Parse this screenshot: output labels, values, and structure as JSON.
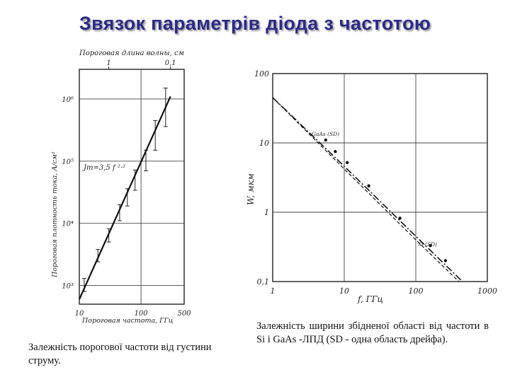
{
  "slide": {
    "title": "Звязок параметрів діода з частотою",
    "caption_left": "Залежність порогової частоти від густини струму.",
    "caption_right": "Залежність ширини збідненої області від частоти в Si і GaAs -ЛПД (SD - одна область дрейфа)."
  },
  "chart_data": [
    {
      "type": "line",
      "xlabel": "Пороговая частота, ГГц",
      "ylabel": "Пороговая плотность тока, А/см²",
      "top_axis_label": "Пороговая длина волны, см",
      "top_ticks": [
        "1",
        "0,1"
      ],
      "x_scale": "log",
      "y_scale": "log",
      "xlim": [
        10,
        500
      ],
      "ylim": [
        500,
        3000000
      ],
      "x_ticks": [
        "10",
        "100",
        "500"
      ],
      "y_ticks": [
        "10³",
        "10⁴",
        "10⁵",
        "10⁶"
      ],
      "annotation": "Jт=3,5 f ²·²",
      "series": [
        {
          "kind": "fit_line",
          "x": [
            10,
            300
          ],
          "y": [
            600,
            1100000
          ]
        },
        {
          "kind": "measured_points",
          "x": [
            12,
            20,
            30,
            45,
            60,
            80,
            120,
            170,
            250
          ],
          "y": [
            1000,
            3000,
            6500,
            15000,
            26000,
            50000,
            100000,
            250000,
            600000
          ],
          "err_low": [
            800,
            2400,
            5000,
            11000,
            19000,
            34000,
            70000,
            150000,
            360000
          ],
          "err_high": [
            1300,
            3800,
            8200,
            20000,
            36000,
            72000,
            150000,
            450000,
            1500000
          ]
        }
      ]
    },
    {
      "type": "line",
      "xlabel": "f, ГГц",
      "ylabel": "W, мкм",
      "x_scale": "log",
      "y_scale": "log",
      "xlim": [
        1,
        1000
      ],
      "ylim": [
        0.1,
        100
      ],
      "x_ticks": [
        "1",
        "10",
        "100",
        "1000"
      ],
      "y_ticks": [
        "0,1",
        "1",
        "10",
        "100"
      ],
      "series": [
        {
          "name": "GaAs (SD)",
          "x": [
            1,
            10,
            100,
            1000
          ],
          "y": [
            45,
            4.6,
            0.45,
            0.045
          ]
        },
        {
          "name": "Si (SD)",
          "x": [
            1,
            10,
            100,
            1000
          ],
          "y": [
            45,
            4.2,
            0.4,
            0.04
          ]
        },
        {
          "kind": "points",
          "x": [
            5.5,
            7.5,
            11,
            22,
            60,
            160,
            260
          ],
          "y": [
            11,
            7.5,
            5.2,
            2.4,
            0.82,
            0.33,
            0.2
          ]
        }
      ]
    }
  ]
}
